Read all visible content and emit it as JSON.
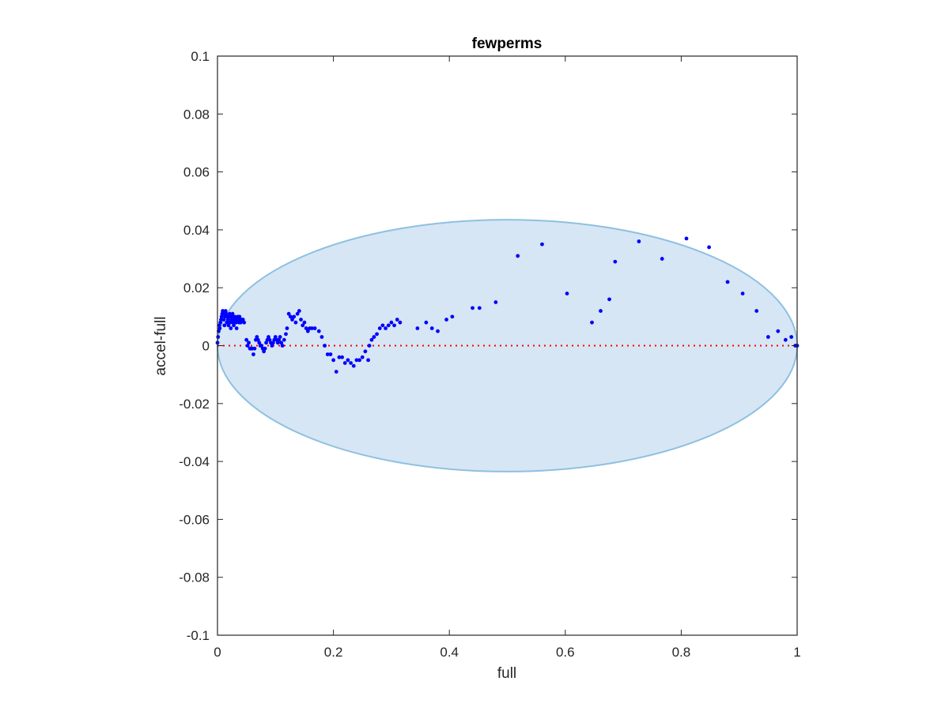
{
  "chart_data": {
    "type": "scatter",
    "title": "fewperms",
    "xlabel": "full",
    "ylabel": "accel-full",
    "xlim": [
      0,
      1
    ],
    "ylim": [
      -0.1,
      0.1
    ],
    "xticks": [
      0,
      0.2,
      0.4,
      0.6,
      0.8,
      1
    ],
    "xtick_labels": [
      "0",
      "0.2",
      "0.4",
      "0.6",
      "0.8",
      "1"
    ],
    "yticks": [
      -0.1,
      -0.08,
      -0.06,
      -0.04,
      -0.02,
      0,
      0.02,
      0.04,
      0.06,
      0.08,
      0.1
    ],
    "ytick_labels": [
      "-0.1",
      "-0.08",
      "-0.06",
      "-0.04",
      "-0.02",
      "0",
      "0.02",
      "0.04",
      "0.06",
      "0.08",
      "0.1"
    ],
    "grid": false,
    "box": true,
    "colors": {
      "points": "#0000ff",
      "zero_line": "#ff0000",
      "ellipse_fill": "#d6e6f4",
      "ellipse_edge": "#8ec0e0",
      "axes": "#262626"
    },
    "ellipse": {
      "center_x": 0.5,
      "center_y": 0,
      "semi_x": 0.5,
      "semi_y": 0.0435
    },
    "reference_line": {
      "y": 0,
      "style": "dotted"
    },
    "series": [
      {
        "points": [
          [
            0.0,
            0.001
          ],
          [
            0.001,
            0.003
          ],
          [
            0.002,
            0.005
          ],
          [
            0.003,
            0.007
          ],
          [
            0.004,
            0.006
          ],
          [
            0.005,
            0.008
          ],
          [
            0.006,
            0.009
          ],
          [
            0.007,
            0.01
          ],
          [
            0.008,
            0.011
          ],
          [
            0.009,
            0.012
          ],
          [
            0.01,
            0.011
          ],
          [
            0.011,
            0.009
          ],
          [
            0.012,
            0.007
          ],
          [
            0.013,
            0.01
          ],
          [
            0.014,
            0.012
          ],
          [
            0.015,
            0.011
          ],
          [
            0.016,
            0.008
          ],
          [
            0.017,
            0.01
          ],
          [
            0.018,
            0.009
          ],
          [
            0.019,
            0.007
          ],
          [
            0.02,
            0.01
          ],
          [
            0.021,
            0.011
          ],
          [
            0.022,
            0.008
          ],
          [
            0.023,
            0.006
          ],
          [
            0.024,
            0.009
          ],
          [
            0.025,
            0.01
          ],
          [
            0.026,
            0.011
          ],
          [
            0.027,
            0.008
          ],
          [
            0.028,
            0.007
          ],
          [
            0.029,
            0.009
          ],
          [
            0.03,
            0.01
          ],
          [
            0.031,
            0.009
          ],
          [
            0.032,
            0.008
          ],
          [
            0.033,
            0.006
          ],
          [
            0.034,
            0.009
          ],
          [
            0.035,
            0.01
          ],
          [
            0.036,
            0.009
          ],
          [
            0.037,
            0.008
          ],
          [
            0.038,
            0.01
          ],
          [
            0.039,
            0.009
          ],
          [
            0.04,
            0.008
          ],
          [
            0.042,
            0.009
          ],
          [
            0.044,
            0.009
          ],
          [
            0.046,
            0.008
          ],
          [
            0.05,
            0.002
          ],
          [
            0.052,
            0.0
          ],
          [
            0.054,
            0.001
          ],
          [
            0.056,
            -0.001
          ],
          [
            0.058,
            -0.001
          ],
          [
            0.06,
            -0.001
          ],
          [
            0.062,
            -0.003
          ],
          [
            0.064,
            -0.001
          ],
          [
            0.066,
            0.002
          ],
          [
            0.068,
            0.003
          ],
          [
            0.07,
            0.002
          ],
          [
            0.072,
            0.001
          ],
          [
            0.074,
            0.0
          ],
          [
            0.076,
            0.0
          ],
          [
            0.078,
            -0.001
          ],
          [
            0.08,
            -0.002
          ],
          [
            0.082,
            -0.001
          ],
          [
            0.084,
            0.001
          ],
          [
            0.086,
            0.002
          ],
          [
            0.088,
            0.003
          ],
          [
            0.09,
            0.002
          ],
          [
            0.092,
            0.001
          ],
          [
            0.094,
            0.0
          ],
          [
            0.096,
            0.001
          ],
          [
            0.098,
            0.002
          ],
          [
            0.1,
            0.003
          ],
          [
            0.102,
            0.002
          ],
          [
            0.104,
            0.001
          ],
          [
            0.106,
            0.002
          ],
          [
            0.108,
            0.003
          ],
          [
            0.11,
            0.001
          ],
          [
            0.112,
            0.0
          ],
          [
            0.115,
            0.002
          ],
          [
            0.118,
            0.004
          ],
          [
            0.12,
            0.006
          ],
          [
            0.123,
            0.011
          ],
          [
            0.126,
            0.01
          ],
          [
            0.129,
            0.009
          ],
          [
            0.132,
            0.01
          ],
          [
            0.135,
            0.008
          ],
          [
            0.138,
            0.011
          ],
          [
            0.141,
            0.012
          ],
          [
            0.144,
            0.009
          ],
          [
            0.147,
            0.007
          ],
          [
            0.15,
            0.008
          ],
          [
            0.153,
            0.006
          ],
          [
            0.156,
            0.005
          ],
          [
            0.159,
            0.006
          ],
          [
            0.163,
            0.006
          ],
          [
            0.168,
            0.006
          ],
          [
            0.175,
            0.005
          ],
          [
            0.18,
            0.003
          ],
          [
            0.185,
            0.0
          ],
          [
            0.19,
            -0.003
          ],
          [
            0.195,
            -0.003
          ],
          [
            0.2,
            -0.005
          ],
          [
            0.205,
            -0.009
          ],
          [
            0.21,
            -0.004
          ],
          [
            0.215,
            -0.004
          ],
          [
            0.22,
            -0.006
          ],
          [
            0.225,
            -0.005
          ],
          [
            0.23,
            -0.006
          ],
          [
            0.235,
            -0.007
          ],
          [
            0.24,
            -0.005
          ],
          [
            0.245,
            -0.005
          ],
          [
            0.25,
            -0.004
          ],
          [
            0.255,
            -0.002
          ],
          [
            0.26,
            -0.005
          ],
          [
            0.262,
            0.0
          ],
          [
            0.266,
            0.002
          ],
          [
            0.27,
            0.003
          ],
          [
            0.275,
            0.004
          ],
          [
            0.28,
            0.006
          ],
          [
            0.285,
            0.007
          ],
          [
            0.29,
            0.006
          ],
          [
            0.295,
            0.007
          ],
          [
            0.3,
            0.008
          ],
          [
            0.305,
            0.007
          ],
          [
            0.31,
            0.009
          ],
          [
            0.315,
            0.008
          ],
          [
            0.345,
            0.006
          ],
          [
            0.36,
            0.008
          ],
          [
            0.37,
            0.006
          ],
          [
            0.38,
            0.005
          ],
          [
            0.395,
            0.009
          ],
          [
            0.405,
            0.01
          ],
          [
            0.44,
            0.013
          ],
          [
            0.452,
            0.013
          ],
          [
            0.48,
            0.015
          ],
          [
            0.518,
            0.031
          ],
          [
            0.56,
            0.035
          ],
          [
            0.603,
            0.018
          ],
          [
            0.646,
            0.008
          ],
          [
            0.661,
            0.012
          ],
          [
            0.676,
            0.016
          ],
          [
            0.686,
            0.029
          ],
          [
            0.727,
            0.036
          ],
          [
            0.767,
            0.03
          ],
          [
            0.809,
            0.037
          ],
          [
            0.848,
            0.034
          ],
          [
            0.88,
            0.022
          ],
          [
            0.906,
            0.018
          ],
          [
            0.93,
            0.012
          ],
          [
            0.95,
            0.003
          ],
          [
            0.967,
            0.005
          ],
          [
            0.98,
            0.002
          ],
          [
            0.99,
            0.003
          ],
          [
            0.997,
            0.0
          ],
          [
            1.0,
            0.0
          ]
        ]
      }
    ]
  }
}
